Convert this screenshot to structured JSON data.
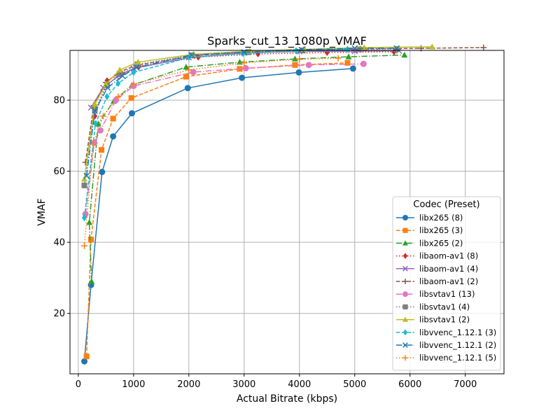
{
  "chart_data": {
    "type": "line",
    "title": "Sparks_cut_13_1080p_VMAF",
    "xlabel": "Actual Bitrate (kbps)",
    "ylabel": "VMAF",
    "xlim": [
      -150,
      7700
    ],
    "ylim": [
      3,
      94
    ],
    "x_ticks": [
      0,
      1000,
      2000,
      3000,
      4000,
      5000,
      6000,
      7000
    ],
    "y_ticks": [
      20,
      40,
      60,
      80
    ],
    "grid": true,
    "legend": {
      "title": "Codec (Preset)",
      "placement": "lower-right"
    },
    "series": [
      {
        "name": "libx265 (8)",
        "color": "#1f77b4",
        "marker": "circle",
        "dash": "solid",
        "points": [
          [
            110,
            6.5
          ],
          [
            230,
            28
          ],
          [
            430,
            59.8
          ],
          [
            630,
            69.8
          ],
          [
            970,
            76.3
          ],
          [
            1980,
            83.4
          ],
          [
            2960,
            86.3
          ],
          [
            3990,
            87.8
          ],
          [
            4970,
            88.9
          ]
        ]
      },
      {
        "name": "libx265 (3)",
        "color": "#ff7f0e",
        "marker": "square",
        "dash": "dashed",
        "points": [
          [
            150,
            7.9
          ],
          [
            230,
            40.8
          ],
          [
            420,
            66
          ],
          [
            630,
            74.8
          ],
          [
            960,
            80.6
          ],
          [
            1950,
            86.6
          ],
          [
            2920,
            88.8
          ],
          [
            3920,
            89.9
          ],
          [
            4870,
            90.5
          ]
        ]
      },
      {
        "name": "libx265 (2)",
        "color": "#2ca02c",
        "marker": "triangle",
        "dash": "dashdot",
        "points": [
          [
            240,
            29
          ],
          [
            200,
            45.6
          ],
          [
            360,
            73.3
          ],
          [
            640,
            79.7
          ],
          [
            970,
            84.2
          ],
          [
            1950,
            89.3
          ],
          [
            2920,
            90.7
          ],
          [
            3920,
            91.6
          ],
          [
            4890,
            92.2
          ],
          [
            5900,
            92.7
          ]
        ]
      },
      {
        "name": "libaom-av1 (8)",
        "color": "#d62728",
        "marker": "diamond",
        "dash": "dotted",
        "points": [
          [
            300,
            75.5
          ],
          [
            520,
            85.5
          ],
          [
            790,
            87.5
          ],
          [
            1100,
            89.5
          ],
          [
            2170,
            92.1
          ],
          [
            3250,
            93
          ],
          [
            4500,
            93.4
          ],
          [
            5710,
            93.6
          ]
        ]
      },
      {
        "name": "libaom-av1 (4)",
        "color": "#9467bd",
        "marker": "x",
        "dash": "solid",
        "points": [
          [
            230,
            77.9
          ],
          [
            450,
            83.5
          ],
          [
            700,
            86.5
          ],
          [
            1000,
            88.9
          ],
          [
            2000,
            92
          ],
          [
            3000,
            93.3
          ],
          [
            4000,
            93.7
          ],
          [
            5000,
            93.8
          ],
          [
            5800,
            93.9
          ]
        ]
      },
      {
        "name": "libaom-av1 (2)",
        "color": "#8c564b",
        "marker": "plus",
        "dash": "dashed",
        "points": [
          [
            130,
            62.5
          ],
          [
            280,
            78.5
          ],
          [
            500,
            85
          ],
          [
            750,
            88
          ],
          [
            1050,
            89.8
          ],
          [
            2100,
            92.5
          ],
          [
            3100,
            93.7
          ],
          [
            4100,
            94.2
          ],
          [
            5100,
            94.4
          ],
          [
            6200,
            94.6
          ],
          [
            7330,
            94.8
          ]
        ]
      },
      {
        "name": "libsvtav1 (13)",
        "color": "#e377c2",
        "marker": "circle",
        "dash": "dashdot",
        "points": [
          [
            130,
            47.9
          ],
          [
            290,
            68
          ],
          [
            400,
            71.5
          ],
          [
            680,
            80
          ],
          [
            1000,
            84
          ],
          [
            2080,
            87.9
          ],
          [
            3030,
            89
          ],
          [
            4170,
            89.9
          ],
          [
            5160,
            90.2
          ]
        ]
      },
      {
        "name": "libsvtav1 (4)",
        "color": "#7f7f7f",
        "marker": "square",
        "dash": "dotted",
        "points": [
          [
            110,
            56
          ],
          [
            300,
            77.5
          ],
          [
            520,
            84.2
          ],
          [
            750,
            87.3
          ],
          [
            1070,
            90.1
          ],
          [
            2050,
            92.6
          ],
          [
            3080,
            93.5
          ],
          [
            4060,
            94
          ],
          [
            5080,
            94.3
          ],
          [
            5760,
            94.4
          ]
        ]
      },
      {
        "name": "libsvtav1 (2)",
        "color": "#bcbd22",
        "marker": "triangle",
        "dash": "solid",
        "points": [
          [
            110,
            57.8
          ],
          [
            300,
            78.9
          ],
          [
            500,
            84.5
          ],
          [
            750,
            88.5
          ],
          [
            1080,
            90.7
          ],
          [
            2080,
            92.9
          ],
          [
            3100,
            93.8
          ],
          [
            4080,
            94.3
          ],
          [
            5170,
            94.8
          ],
          [
            6400,
            95
          ]
        ]
      },
      {
        "name": "libvvenc_1.12.1 (3)",
        "color": "#17becf",
        "marker": "diamond",
        "dash": "dashed",
        "points": [
          [
            110,
            46.9
          ],
          [
            310,
            73.4
          ],
          [
            520,
            81
          ],
          [
            720,
            84.7
          ],
          [
            1000,
            87.8
          ],
          [
            2000,
            92
          ],
          [
            2980,
            93.1
          ],
          [
            3940,
            93.9
          ],
          [
            4870,
            94.3
          ]
        ]
      },
      {
        "name": "libvvenc_1.12.1 (2)",
        "color": "#1f77b4",
        "marker": "x",
        "dash": "dashdot",
        "points": [
          [
            150,
            58.7
          ],
          [
            300,
            77
          ],
          [
            530,
            83.5
          ],
          [
            800,
            86.8
          ],
          [
            1050,
            89.2
          ],
          [
            2050,
            92.7
          ],
          [
            3000,
            93.5
          ],
          [
            4040,
            94.2
          ],
          [
            5000,
            94.6
          ],
          [
            5760,
            94.6
          ]
        ]
      },
      {
        "name": "libvvenc_1.12.1 (5)",
        "color": "#ff7f0e",
        "marker": "plus",
        "dash": "dotted",
        "points": [
          [
            110,
            39
          ],
          [
            270,
            67.6
          ],
          [
            450,
            75.5
          ],
          [
            720,
            81
          ],
          [
            1000,
            84.5
          ],
          [
            2000,
            88.5
          ],
          [
            3000,
            90.5
          ],
          [
            4000,
            91.5
          ],
          [
            4700,
            91.8
          ]
        ]
      }
    ]
  }
}
